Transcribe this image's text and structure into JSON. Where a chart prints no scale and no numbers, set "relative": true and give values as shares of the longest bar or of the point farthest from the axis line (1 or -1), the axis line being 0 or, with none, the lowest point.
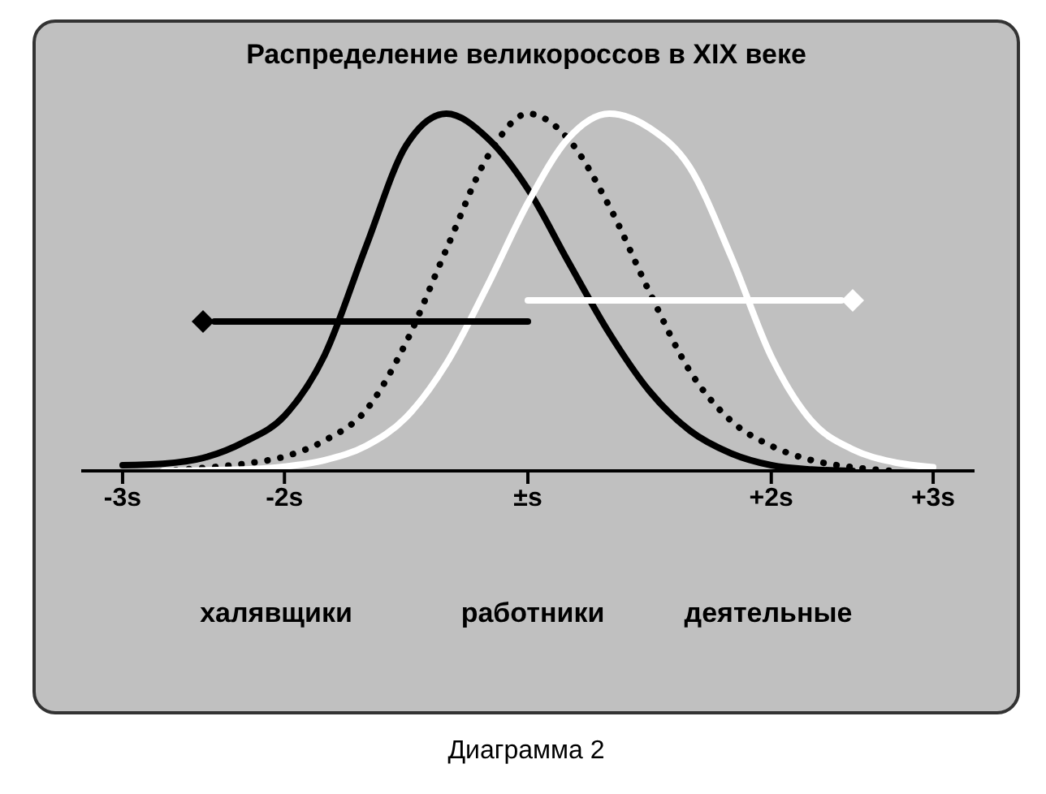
{
  "chart_data": {
    "type": "line",
    "title": "Распределение великороссов в XIX веке",
    "relative": true,
    "xlim": [
      -3.67,
      3.67
    ],
    "xticks": [
      {
        "value": -3.33,
        "label": "-3s"
      },
      {
        "value": -2,
        "label": "-2s"
      },
      {
        "value": 0,
        "label": "±s"
      },
      {
        "value": 2,
        "label": "+2s"
      },
      {
        "value": 3.33,
        "label": "+3s"
      }
    ],
    "marker": "none",
    "series": [
      {
        "color": "#000000",
        "line_style": "solid",
        "x": [
          -3.33,
          -3,
          -2.67,
          -2.33,
          -2,
          -1.67,
          -1.33,
          -1,
          -0.67,
          -0.33,
          0,
          0.33,
          0.67,
          1,
          1.33,
          1.67,
          2,
          2.33,
          2.67
        ],
        "values": [
          0.016,
          0.02,
          0.036,
          0.081,
          0.154,
          0.324,
          0.628,
          0.911,
          1.0,
          0.931,
          0.789,
          0.587,
          0.385,
          0.223,
          0.113,
          0.049,
          0.016,
          0.004,
          0
        ]
      },
      {
        "color": "#000000",
        "line_style": "dotted",
        "x": [
          -3,
          -2.67,
          -2.33,
          -2,
          -1.67,
          -1.33,
          -1,
          -0.67,
          -0.33,
          0,
          0.33,
          0.67,
          1,
          1.33,
          1.67,
          2,
          2.33,
          2.67,
          3
        ],
        "values": [
          0,
          0.008,
          0.02,
          0.04,
          0.085,
          0.17,
          0.36,
          0.62,
          0.88,
          1.0,
          0.93,
          0.74,
          0.5,
          0.28,
          0.14,
          0.07,
          0.03,
          0.01,
          0
        ]
      },
      {
        "color": "#ffffff",
        "line_style": "solid",
        "x": [
          -3,
          -2.33,
          -2,
          -1.67,
          -1.33,
          -1,
          -0.67,
          -0.33,
          0,
          0.33,
          0.67,
          1,
          1.33,
          1.67,
          2,
          2.33,
          2.67,
          3,
          3.33
        ],
        "values": [
          0,
          0.004,
          0.012,
          0.03,
          0.07,
          0.15,
          0.3,
          0.52,
          0.75,
          0.93,
          1.0,
          0.96,
          0.85,
          0.6,
          0.32,
          0.14,
          0.06,
          0.025,
          0.01
        ]
      }
    ],
    "annotations": [
      "халявщики",
      "работники",
      "деятельные",
      "Диаграмма 2"
    ]
  }
}
